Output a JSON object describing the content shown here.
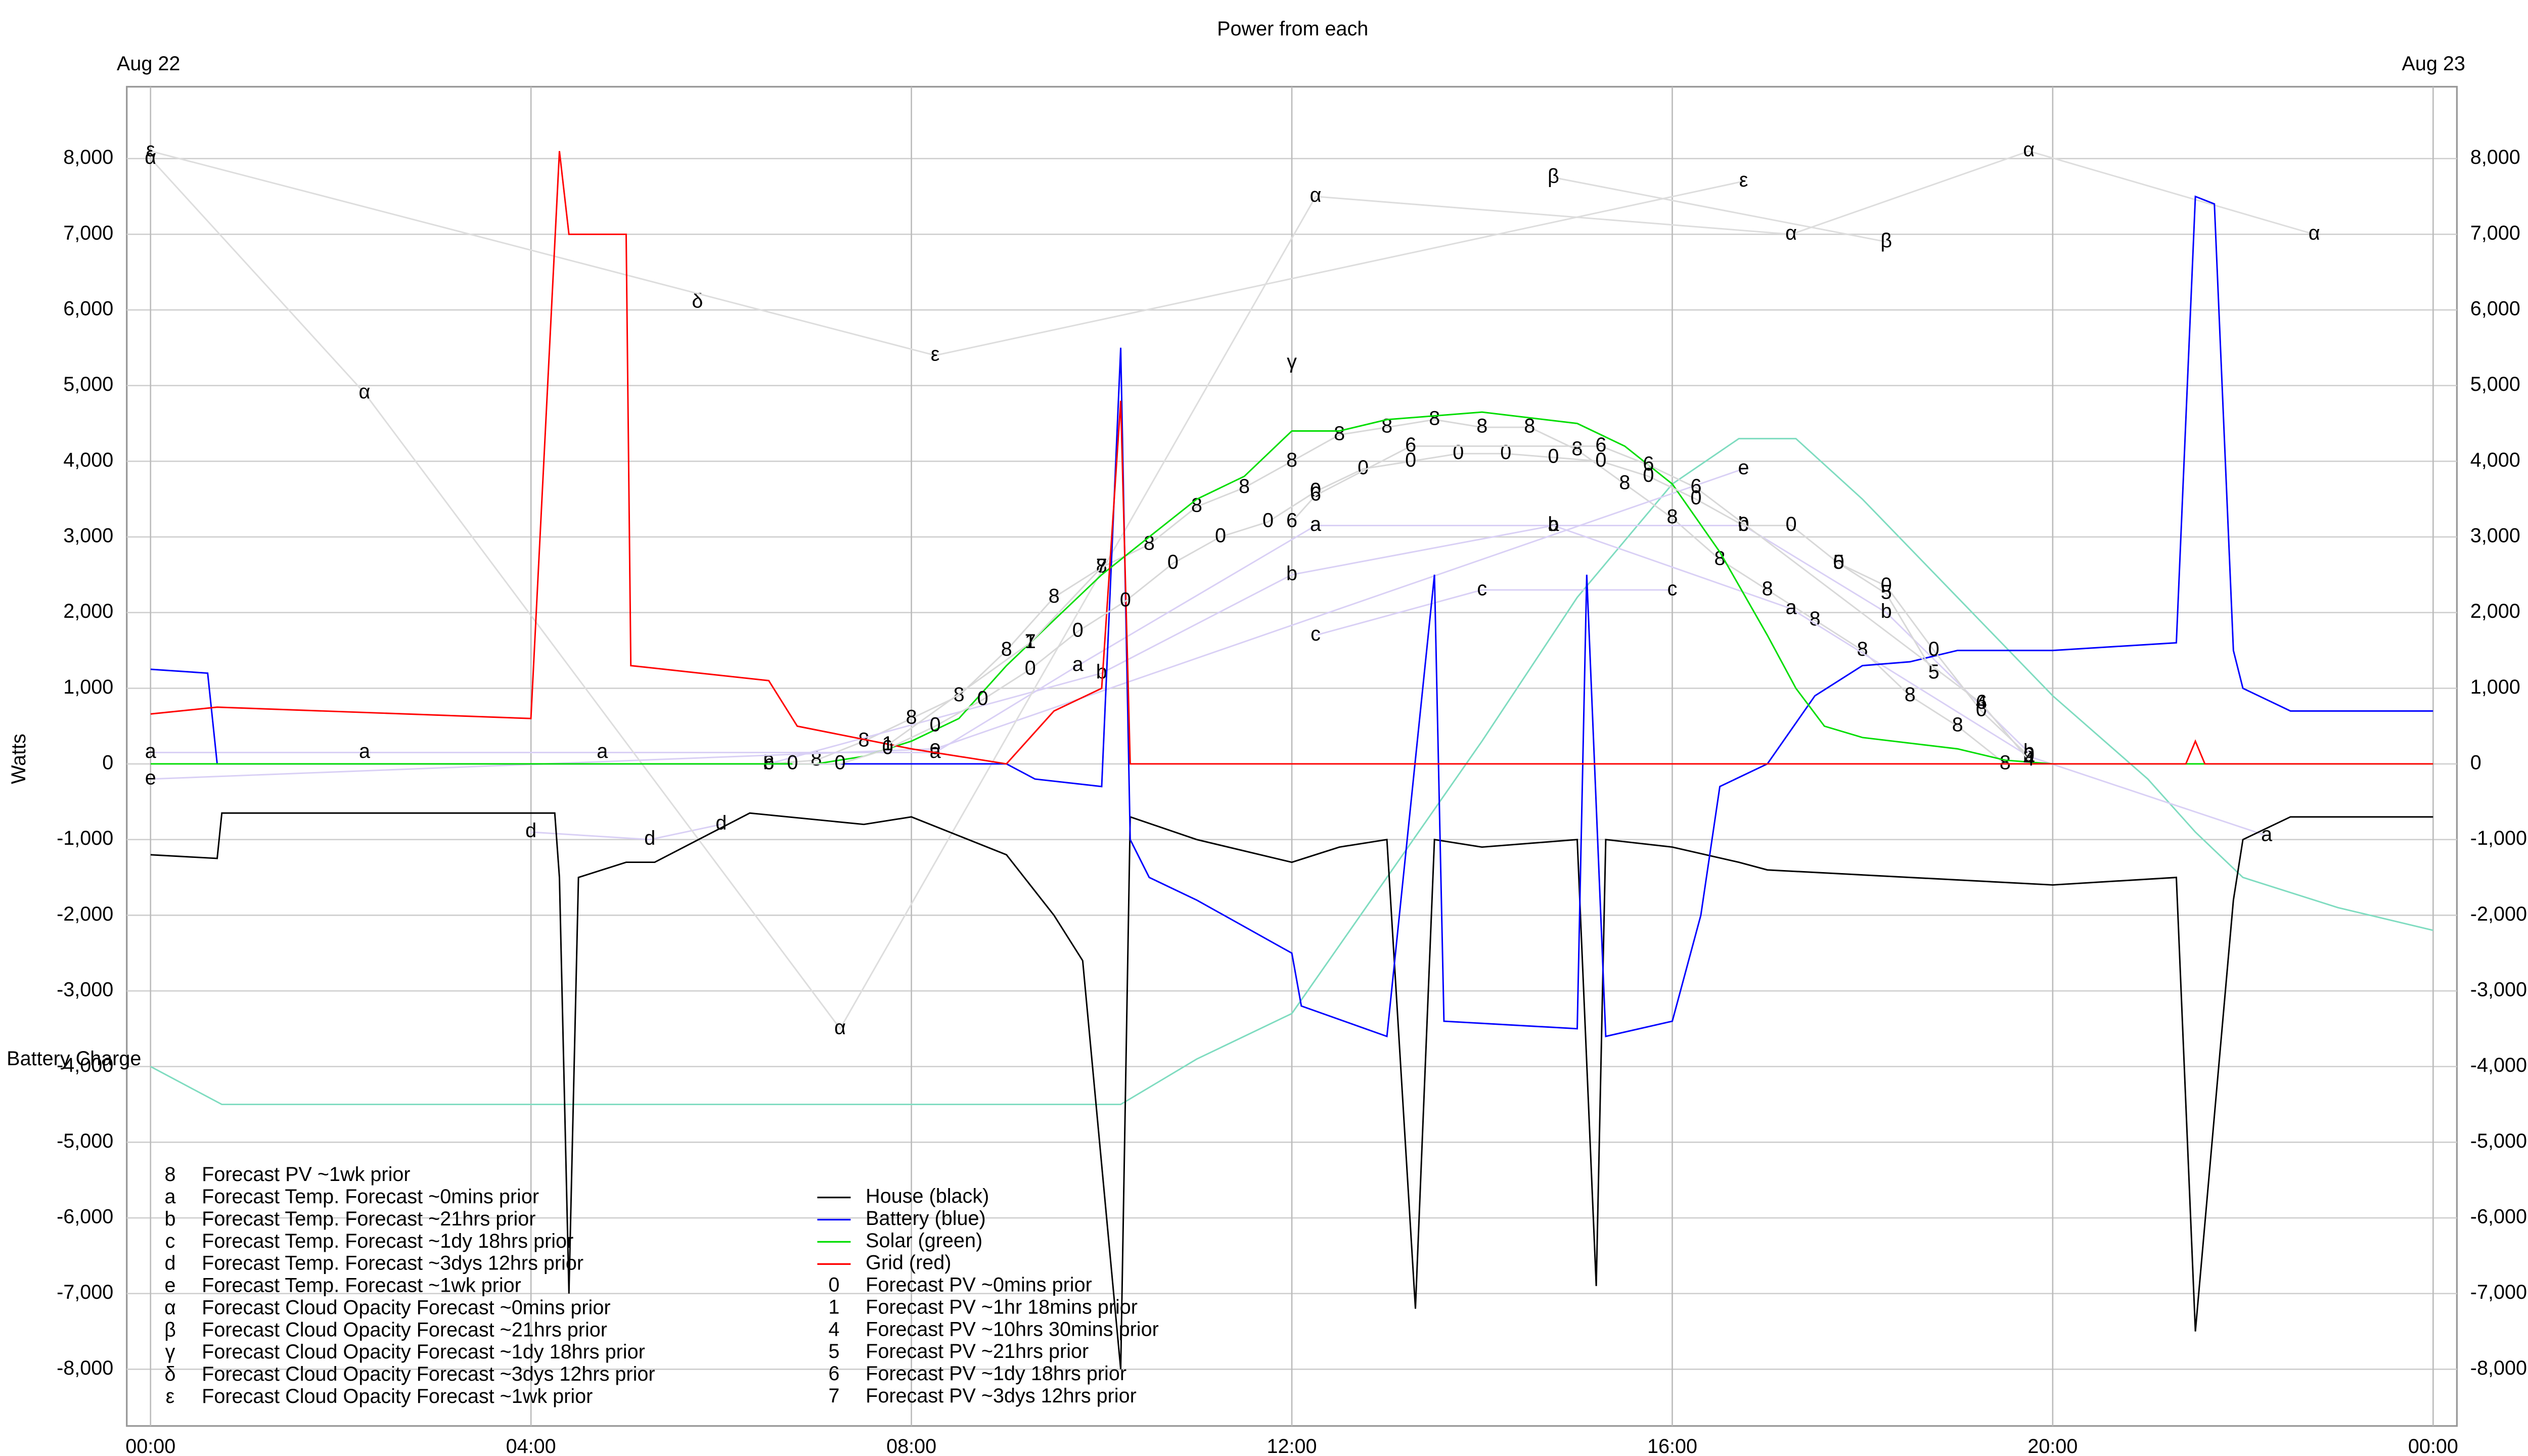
{
  "chart_data": {
    "type": "line",
    "title": "Power from each",
    "y_label": "Watts",
    "date_start": "Aug 22",
    "date_end": "Aug 23",
    "xlim": [
      -0.25,
      24.25
    ],
    "ylim": [
      -8750,
      8950
    ],
    "xticks": [
      {
        "value": 0,
        "label": "00:00"
      },
      {
        "value": 4,
        "label": "04:00"
      },
      {
        "value": 8,
        "label": "08:00"
      },
      {
        "value": 12,
        "label": "12:00"
      },
      {
        "value": 16,
        "label": "16:00"
      },
      {
        "value": 20,
        "label": "20:00"
      },
      {
        "value": 24,
        "label": "00:00"
      }
    ],
    "yticks": [
      {
        "value": -8000,
        "label": "-8,000"
      },
      {
        "value": -7000,
        "label": "-7,000"
      },
      {
        "value": -6000,
        "label": "-6,000"
      },
      {
        "value": -5000,
        "label": "-5,000"
      },
      {
        "value": -4000,
        "label": "-4,000"
      },
      {
        "value": -3000,
        "label": "-3,000"
      },
      {
        "value": -2000,
        "label": "-2,000"
      },
      {
        "value": -1000,
        "label": "-1,000"
      },
      0,
      {
        "value": 1000,
        "label": "1,000"
      },
      {
        "value": 2000,
        "label": "2,000"
      },
      {
        "value": 3000,
        "label": "3,000"
      },
      {
        "value": 4000,
        "label": "4,000"
      },
      {
        "value": 5000,
        "label": "5,000"
      },
      {
        "value": 6000,
        "label": "6,000"
      },
      {
        "value": 7000,
        "label": "7,000"
      },
      {
        "value": 8000,
        "label": "8,000"
      }
    ],
    "grid": true,
    "battery_charge": {
      "name": "Battery Charge",
      "color": "#7fdcc0",
      "x": [
        0,
        0.75,
        10.2,
        11,
        12,
        13,
        14,
        15,
        16,
        16.7,
        17.3,
        18,
        19,
        20,
        21,
        21.5,
        22,
        23,
        24
      ],
      "values": [
        -4000,
        -4500,
        -4500,
        -3900,
        -3300,
        -1500,
        300,
        2200,
        3700,
        4300,
        4300,
        3500,
        2200,
        900,
        -200,
        -900,
        -1500,
        -1900,
        -2200
      ]
    },
    "series": [
      {
        "name": "Forecast PV ~1wk prior",
        "symbol": "8",
        "color": "#d8d8d8",
        "x": [
          6.5,
          7,
          7.5,
          8,
          8.5,
          9,
          9.5,
          10,
          10.5,
          11,
          11.5,
          12,
          12.5,
          13,
          13.5,
          14,
          14.5,
          15,
          15.5,
          16,
          16.5,
          17,
          17.5,
          18,
          18.5,
          19,
          19.5
        ],
        "values": [
          0,
          50,
          300,
          600,
          900,
          1500,
          2200,
          2600,
          2900,
          3400,
          3650,
          4000,
          4350,
          4450,
          4550,
          4450,
          4450,
          4150,
          3700,
          3250,
          2700,
          2300,
          1900,
          1500,
          900,
          500,
          0
        ]
      },
      {
        "name": "Forecast Temp. Forecast ~0mins prior",
        "symbol": "a",
        "color": "#d9d0f5",
        "x": [
          0,
          2.25,
          4.75,
          8.25,
          9.75,
          12.25,
          14.75,
          17.25,
          19.75,
          22.25
        ],
        "values": [
          150,
          150,
          150,
          150,
          1300,
          3150,
          3150,
          2050,
          100,
          -950
        ]
      },
      {
        "name": "Forecast Temp. Forecast ~21hrs prior",
        "symbol": "b",
        "color": "#d9d0f5",
        "x": [
          6.5,
          10,
          12,
          14.75,
          16.75,
          18.25,
          19.75
        ],
        "values": [
          0,
          1200,
          2500,
          3150,
          3150,
          2000,
          150
        ]
      },
      {
        "name": "Forecast Temp. Forecast ~1dy 18hrs prior",
        "symbol": "c",
        "color": "#d9d0f5",
        "x": [
          12.25,
          14,
          16
        ],
        "values": [
          1700,
          2300,
          2300
        ]
      },
      {
        "name": "Forecast Temp. Forecast ~3dys 12hrs prior",
        "symbol": "d",
        "color": "#d9d0f5",
        "x": [
          4,
          5.25,
          6
        ],
        "values": [
          -900,
          -1000,
          -800
        ]
      },
      {
        "name": "Forecast Temp. Forecast ~1wk prior",
        "symbol": "e",
        "color": "#d9d0f5",
        "x": [
          0,
          8.25,
          16.75
        ],
        "values": [
          -200,
          200,
          3900
        ]
      },
      {
        "name": "Forecast Cloud Opacity Forecast ~0mins prior",
        "symbol": "α",
        "color": "#dddddd",
        "x": [
          0,
          2.25,
          7.25,
          12.25,
          17.25,
          19.75,
          22.75
        ],
        "values": [
          8000,
          4900,
          -3500,
          7500,
          7000,
          8100,
          7000
        ]
      },
      {
        "name": "Forecast Cloud Opacity Forecast ~21hrs prior",
        "symbol": "β",
        "color": "#dddddd",
        "x": [
          14.75,
          18.25
        ],
        "values": [
          7750,
          6900
        ]
      },
      {
        "name": "Forecast Cloud Opacity Forecast ~1dy 18hrs prior",
        "symbol": "γ",
        "color": "#dddddd",
        "x": [
          12
        ],
        "values": [
          5300
        ]
      },
      {
        "name": "Forecast Cloud Opacity Forecast ~3dys 12hrs prior",
        "symbol": "δ",
        "color": "#dddddd",
        "x": [
          5.75
        ],
        "values": [
          6100
        ]
      },
      {
        "name": "Forecast Cloud Opacity Forecast ~1wk prior",
        "symbol": "ε",
        "color": "#dddddd",
        "x": [
          0,
          8.25,
          16.75
        ],
        "values": [
          8100,
          5400,
          7700
        ]
      },
      {
        "name": "House (black)",
        "color": "#000000",
        "x": [
          0,
          0.7,
          0.75,
          4.25,
          4.3,
          4.4,
          4.5,
          5,
          5.3,
          6.3,
          7.5,
          8,
          9,
          9.5,
          9.8,
          10.2,
          10.3,
          11,
          12,
          12.5,
          13,
          13.3,
          13.5,
          14,
          15,
          15.2,
          15.3,
          16,
          16.7,
          17,
          20,
          21.3,
          21.5,
          21.9,
          22,
          22.5,
          24
        ],
        "values": [
          -1200,
          -1250,
          -650,
          -650,
          -1500,
          -7000,
          -1500,
          -1300,
          -1300,
          -650,
          -800,
          -700,
          -1200,
          -2000,
          -2600,
          -8000,
          -700,
          -1000,
          -1300,
          -1100,
          -1000,
          -7200,
          -1000,
          -1100,
          -1000,
          -6900,
          -1000,
          -1100,
          -1300,
          -1400,
          -1600,
          -1500,
          -7500,
          -1800,
          -1000,
          -700,
          -700
        ]
      },
      {
        "name": "Battery (blue)",
        "color": "#0000ff",
        "x": [
          0,
          0.6,
          0.7,
          9,
          9.3,
          10,
          10.2,
          10.3,
          10.5,
          11,
          12,
          12.1,
          13,
          13.5,
          13.6,
          15,
          15.1,
          15.3,
          16,
          16.3,
          16.5,
          17,
          17.5,
          18,
          18.5,
          19,
          20,
          21.3,
          21.5,
          21.7,
          21.9,
          22,
          22.5,
          23,
          24
        ],
        "values": [
          1250,
          1200,
          0,
          0,
          -200,
          -300,
          5500,
          -1000,
          -1500,
          -1800,
          -2500,
          -3200,
          -3600,
          2500,
          -3400,
          -3500,
          2500,
          -3600,
          -3400,
          -2000,
          -300,
          0,
          900,
          1300,
          1350,
          1500,
          1500,
          1600,
          7500,
          7400,
          1500,
          1000,
          700,
          700,
          700
        ]
      },
      {
        "name": "Solar (green)",
        "color": "#00dd00",
        "x": [
          0,
          7,
          7.5,
          8,
          8.5,
          9,
          9.5,
          10,
          10.5,
          11,
          11.5,
          12,
          12.5,
          13,
          14,
          15,
          15.5,
          16,
          16.5,
          17,
          17.3,
          17.6,
          18,
          19,
          19.5,
          20,
          24
        ],
        "values": [
          0,
          0,
          100,
          300,
          600,
          1300,
          1900,
          2500,
          3000,
          3500,
          3800,
          4400,
          4400,
          4550,
          4650,
          4500,
          4200,
          3700,
          2800,
          1700,
          1000,
          500,
          350,
          200,
          50,
          0,
          0
        ]
      },
      {
        "name": "Grid (red)",
        "color": "#ff0000",
        "x": [
          0,
          0.7,
          4,
          4.3,
          4.4,
          5,
          5.05,
          6.5,
          6.8,
          8,
          9,
          9.5,
          10,
          10.2,
          10.3,
          21.4,
          21.5,
          21.6,
          24
        ],
        "values": [
          660,
          750,
          600,
          8100,
          7000,
          7000,
          1300,
          1100,
          500,
          200,
          0,
          700,
          1000,
          4800,
          0,
          0,
          300,
          0,
          0
        ]
      },
      {
        "name": "Forecast PV ~0mins prior",
        "symbol": "0",
        "color": "#d8d8d8",
        "x": [
          6.75,
          7.25,
          7.75,
          8.25,
          8.75,
          9.25,
          9.75,
          10.25,
          10.75,
          11.25,
          11.75,
          12.25,
          12.75,
          13.25,
          13.75,
          14.25,
          14.75,
          15.25,
          15.75,
          16.25,
          16.75,
          17.25,
          17.75,
          18.25,
          18.75,
          19.25,
          19.75
        ],
        "values": [
          0,
          0,
          200,
          500,
          850,
          1250,
          1750,
          2150,
          2650,
          3000,
          3200,
          3600,
          3900,
          4000,
          4100,
          4100,
          4050,
          4000,
          3800,
          3500,
          3150,
          3150,
          2650,
          2350,
          1500,
          700,
          100
        ]
      },
      {
        "name": "Forecast PV ~1hr 18mins prior",
        "symbol": "1",
        "color": "#d8d8d8",
        "x": [
          7.75,
          9.25
        ],
        "values": [
          250,
          1600
        ]
      },
      {
        "name": "Forecast PV ~10hrs 30mins prior",
        "symbol": "4",
        "color": "#d8d8d8",
        "x": [
          19.25,
          19.75
        ],
        "values": [
          800,
          50
        ]
      },
      {
        "name": "Forecast PV ~21hrs prior",
        "symbol": "5",
        "color": "#d8d8d8",
        "x": [
          17.75,
          18.25,
          18.75
        ],
        "values": [
          2650,
          2250,
          1200
        ]
      },
      {
        "name": "Forecast PV ~1dy 18hrs prior",
        "symbol": "6",
        "color": "#d8d8d8",
        "x": [
          12,
          12.25,
          13.25,
          15.25,
          15.75,
          16.25,
          19.25
        ],
        "values": [
          3200,
          3550,
          4200,
          4200,
          3950,
          3650,
          800
        ]
      },
      {
        "name": "Forecast PV ~3dys 12hrs prior",
        "symbol": "7",
        "color": "#d8d8d8",
        "x": [
          9.25,
          10
        ],
        "values": [
          1600,
          2600
        ]
      }
    ]
  }
}
